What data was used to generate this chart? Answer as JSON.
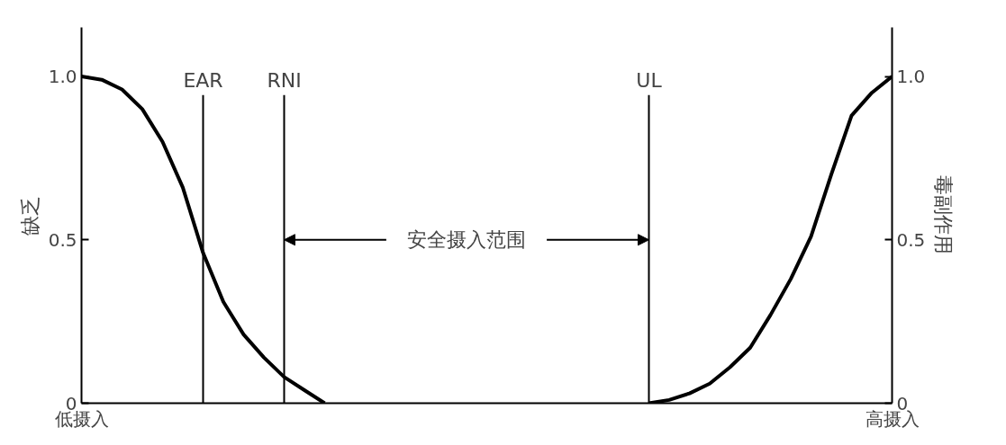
{
  "chart_data": {
    "type": "line",
    "ylabel": "缺乏",
    "y2label": "毒副作用",
    "categories": [
      "低摄入",
      null,
      null,
      null,
      null,
      null,
      "EAR",
      null,
      null,
      null,
      "RNI",
      null,
      null,
      null,
      null,
      null,
      null,
      null,
      null,
      null,
      null,
      null,
      null,
      null,
      null,
      null,
      null,
      null,
      "UL",
      null,
      null,
      null,
      null,
      null,
      null,
      null,
      null,
      null,
      null,
      null,
      "高摄入"
    ],
    "series": [
      {
        "color": "#000000",
        "values": [
          1.0,
          0.99,
          0.96,
          0.9,
          0.8,
          0.66,
          0.46,
          0.31,
          0.21,
          0.14,
          0.08,
          0.04,
          0.0,
          null,
          null,
          null,
          null,
          null,
          null,
          null,
          null,
          null,
          null,
          null,
          null,
          null,
          null,
          null,
          null,
          null,
          null,
          null,
          null,
          null,
          null,
          null,
          null,
          null,
          null,
          null,
          null
        ]
      },
      {
        "color": "#000000",
        "values": [
          null,
          null,
          null,
          null,
          null,
          null,
          null,
          null,
          null,
          null,
          null,
          null,
          null,
          null,
          null,
          null,
          null,
          null,
          null,
          null,
          null,
          null,
          null,
          null,
          null,
          null,
          null,
          null,
          0.0,
          0.01,
          0.03,
          0.06,
          0.11,
          0.17,
          0.27,
          0.38,
          0.51,
          0.7,
          0.88,
          0.95,
          1.0
        ]
      }
    ],
    "ylim": [
      0,
      1.15
    ],
    "yticks": [
      {
        "value": 0,
        "label": "0"
      },
      {
        "value": 0.5,
        "label": "0.5"
      },
      {
        "value": 1,
        "label": "1.0"
      }
    ],
    "y2lim": [
      0,
      1.15
    ],
    "y2ticks": [
      {
        "value": 0,
        "label": "0"
      },
      {
        "value": 0.5,
        "label": "0.5"
      },
      {
        "value": 1,
        "label": "1.0"
      }
    ],
    "ref_lines": [
      {
        "axis": "x",
        "value": "EAR",
        "color": "#000000"
      },
      {
        "axis": "x",
        "value": "RNI",
        "color": "#000000"
      },
      {
        "axis": "x",
        "value": "UL",
        "color": "#000000"
      }
    ],
    "annotations": [
      {
        "text": "安全摄入范围",
        "x": "RNI",
        "y": 0.5
      }
    ],
    "grid": false,
    "line_style": "solid"
  }
}
